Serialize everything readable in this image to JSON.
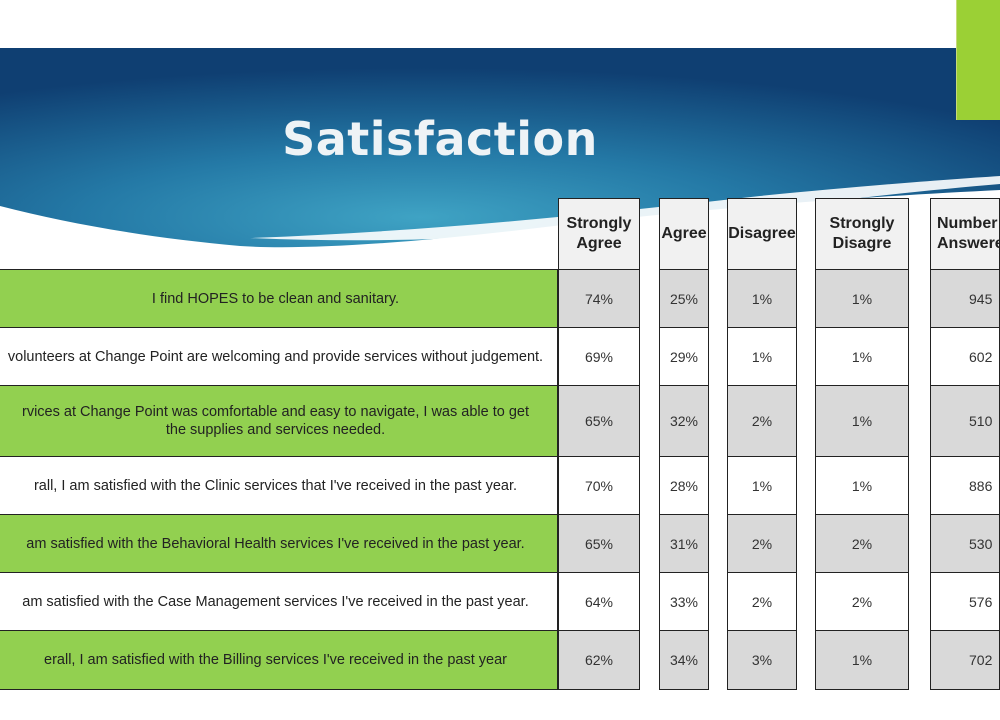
{
  "slide": {
    "title": "Satisfaction"
  },
  "colors": {
    "banner_dark": "#134a7c",
    "banner_light": "#2f8fb4",
    "accent_green": "#9bd035",
    "row_green": "#92d050",
    "cell_gray": "#d9d9d9"
  },
  "table": {
    "headers": [
      "Strongly Agree",
      "Agree",
      "Disagree",
      "Strongly Disagre",
      "Number Answere"
    ],
    "rows": [
      {
        "question": "I find HOPES to be clean and sanitary.",
        "strongly_agree": "74%",
        "agree": "25%",
        "disagree": "1%",
        "strongly_disagree": "1%",
        "number_answered": "945"
      },
      {
        "question": "volunteers at Change Point are welcoming and provide services without judgement.",
        "strongly_agree": "69%",
        "agree": "29%",
        "disagree": "1%",
        "strongly_disagree": "1%",
        "number_answered": "602"
      },
      {
        "question": "rvices at Change Point was comfortable and easy to navigate, I was able to get the supplies and services needed.",
        "strongly_agree": "65%",
        "agree": "32%",
        "disagree": "2%",
        "strongly_disagree": "1%",
        "number_answered": "510"
      },
      {
        "question": "rall, I am satisfied with the Clinic services that I've received in the past year.",
        "strongly_agree": "70%",
        "agree": "28%",
        "disagree": "1%",
        "strongly_disagree": "1%",
        "number_answered": "886"
      },
      {
        "question": "am satisfied with the Behavioral Health services I've received in the past year.",
        "strongly_agree": "65%",
        "agree": "31%",
        "disagree": "2%",
        "strongly_disagree": "2%",
        "number_answered": "530"
      },
      {
        "question": "am satisfied with the Case Management services I've received in the past year.",
        "strongly_agree": "64%",
        "agree": "33%",
        "disagree": "2%",
        "strongly_disagree": "2%",
        "number_answered": "576"
      },
      {
        "question": "erall, I am satisfied with the Billing services I've received in the past year",
        "strongly_agree": "62%",
        "agree": "34%",
        "disagree": "3%",
        "strongly_disagree": "1%",
        "number_answered": "702"
      }
    ]
  }
}
